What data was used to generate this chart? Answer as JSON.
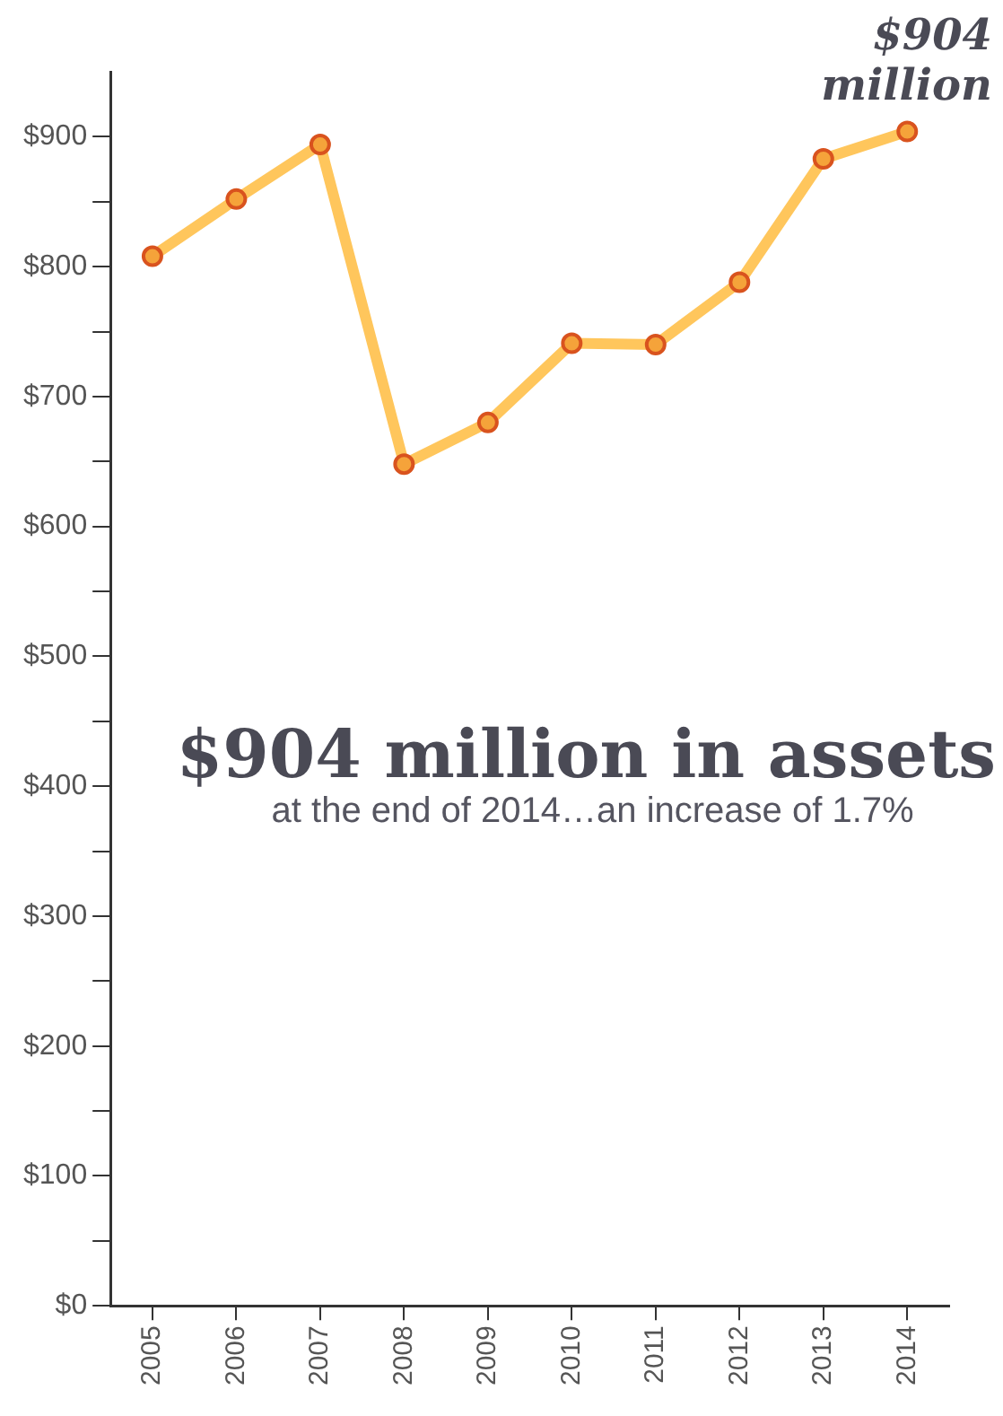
{
  "chart_data": {
    "type": "line",
    "categories": [
      "2005",
      "2006",
      "2007",
      "2008",
      "2009",
      "2010",
      "2011",
      "2012",
      "2013",
      "2014"
    ],
    "series": [
      {
        "color": "#ffc65c",
        "values": [
          808,
          852,
          894,
          648,
          680,
          741,
          740,
          788,
          883,
          904
        ]
      }
    ],
    "ylim": [
      0,
      950
    ],
    "yticks": [
      {
        "value": 0,
        "label": "$0"
      },
      {
        "value": 50,
        "label": null
      },
      {
        "value": 100,
        "label": "$100"
      },
      {
        "value": 150,
        "label": null
      },
      {
        "value": 200,
        "label": "$200"
      },
      {
        "value": 250,
        "label": null
      },
      {
        "value": 300,
        "label": "$300"
      },
      {
        "value": 350,
        "label": null
      },
      {
        "value": 400,
        "label": "$400"
      },
      {
        "value": 450,
        "label": null
      },
      {
        "value": 500,
        "label": "$500"
      },
      {
        "value": 550,
        "label": null
      },
      {
        "value": 600,
        "label": "$600"
      },
      {
        "value": 650,
        "label": null
      },
      {
        "value": 700,
        "label": "$700"
      },
      {
        "value": 750,
        "label": null
      },
      {
        "value": 800,
        "label": "$800"
      },
      {
        "value": 850,
        "label": null
      },
      {
        "value": 900,
        "label": "$900"
      }
    ],
    "marker": "circle",
    "line_style": "solid",
    "grid": false,
    "legend": false,
    "annotations": [
      {
        "text": "$904 million",
        "x": "2014",
        "y": 904
      },
      "$904 million in assets",
      "at the end of 2014…an increase of 1.7%"
    ]
  }
}
